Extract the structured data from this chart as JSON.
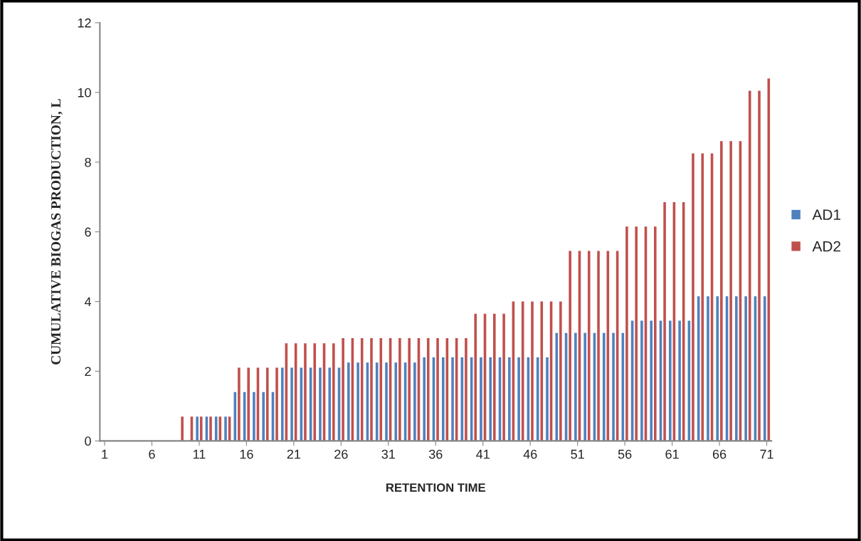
{
  "chart_data": {
    "type": "bar",
    "xlabel": "RETENTION TIME",
    "ylabel": "CUMULATIVE BIOGAS PRODUCTION, L",
    "categories": [
      "1",
      null,
      null,
      null,
      null,
      "6",
      null,
      null,
      null,
      null,
      "11",
      null,
      null,
      null,
      null,
      "16",
      null,
      null,
      null,
      null,
      "21",
      null,
      null,
      null,
      null,
      "26",
      null,
      null,
      null,
      null,
      "31",
      null,
      null,
      null,
      null,
      "36",
      null,
      null,
      null,
      null,
      "41",
      null,
      null,
      null,
      null,
      "46",
      null,
      null,
      null,
      null,
      "51",
      null,
      null,
      null,
      null,
      "56",
      null,
      null,
      null,
      null,
      "61",
      null,
      null,
      null,
      null,
      "66",
      null,
      null,
      null,
      null,
      "71"
    ],
    "series": [
      {
        "name": "AD1",
        "color": "#4f81bd",
        "values": [
          null,
          null,
          null,
          null,
          null,
          null,
          null,
          null,
          null,
          null,
          0.7,
          0.7,
          0.7,
          0.7,
          1.4,
          1.4,
          1.4,
          1.4,
          1.4,
          2.1,
          2.1,
          2.1,
          2.1,
          2.1,
          2.1,
          2.1,
          2.25,
          2.25,
          2.25,
          2.25,
          2.25,
          2.25,
          2.25,
          2.25,
          2.4,
          2.4,
          2.4,
          2.4,
          2.4,
          2.4,
          2.4,
          2.4,
          2.4,
          2.4,
          2.4,
          2.4,
          2.4,
          2.4,
          3.1,
          3.1,
          3.1,
          3.1,
          3.1,
          3.1,
          3.1,
          3.1,
          3.45,
          3.45,
          3.45,
          3.45,
          3.45,
          3.45,
          3.45,
          4.15,
          4.15,
          4.15,
          4.15,
          4.15,
          4.15,
          4.15,
          4.15
        ]
      },
      {
        "name": "AD2",
        "color": "#c0504d",
        "values": [
          null,
          null,
          null,
          null,
          null,
          null,
          null,
          null,
          0.7,
          0.7,
          0.7,
          0.7,
          0.7,
          0.7,
          2.1,
          2.1,
          2.1,
          2.1,
          2.1,
          2.8,
          2.8,
          2.8,
          2.8,
          2.8,
          2.8,
          2.95,
          2.95,
          2.95,
          2.95,
          2.95,
          2.95,
          2.95,
          2.95,
          2.95,
          2.95,
          2.95,
          2.95,
          2.95,
          2.95,
          3.65,
          3.65,
          3.65,
          3.65,
          4.0,
          4.0,
          4.0,
          4.0,
          4.0,
          4.0,
          5.45,
          5.45,
          5.45,
          5.45,
          5.45,
          5.45,
          6.15,
          6.15,
          6.15,
          6.15,
          6.85,
          6.85,
          6.85,
          8.25,
          8.25,
          8.25,
          8.6,
          8.6,
          8.6,
          10.05,
          10.05,
          10.4
        ]
      }
    ],
    "ylim": [
      0,
      12
    ],
    "yticks": [
      0,
      2,
      4,
      6,
      8,
      10,
      12
    ],
    "legend": "right"
  }
}
